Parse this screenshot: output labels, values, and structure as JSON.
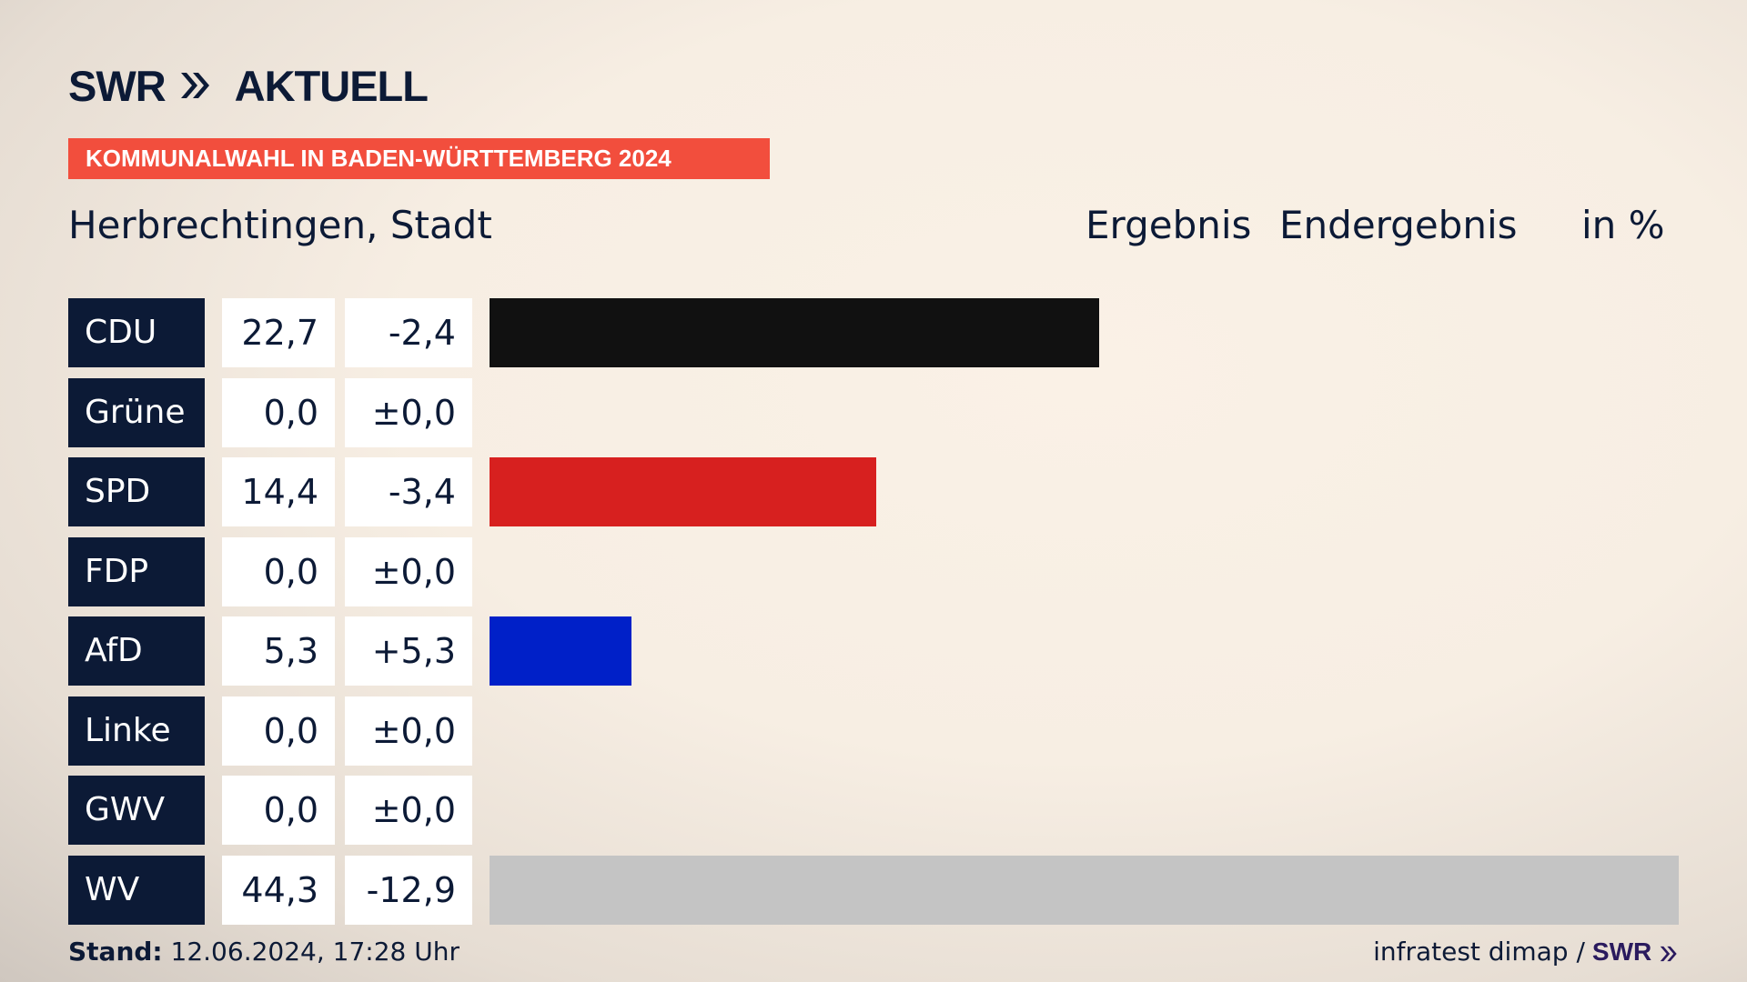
{
  "header": {
    "logo_text": "SWR",
    "logo_suffix": "AKTUELL",
    "banner": "KOMMUNALWAHL IN BADEN-WÜRTTEMBERG 2024",
    "place": "Herbrechtingen, Stadt",
    "col_result": "Ergebnis",
    "col_final": "Endergebnis",
    "col_unit": "in %"
  },
  "chart_data": {
    "type": "bar",
    "title": "Herbrechtingen, Stadt",
    "categories": [
      "CDU",
      "Grüne",
      "SPD",
      "FDP",
      "AfD",
      "Linke",
      "GWV",
      "WV"
    ],
    "series": [
      {
        "values": [
          22.7,
          0.0,
          14.4,
          0.0,
          5.3,
          0.0,
          0.0,
          44.3
        ]
      }
    ],
    "value_labels": [
      "22,7",
      "0,0",
      "14,4",
      "0,0",
      "5,3",
      "0,0",
      "0,0",
      "44,3"
    ],
    "diff_labels": [
      "-2,4",
      "±0,0",
      "-3,4",
      "±0,0",
      "+5,3",
      "±0,0",
      "±0,0",
      "-12,9"
    ],
    "colors": [
      "#111111",
      "#2e8b2e",
      "#d7201f",
      "#f2d500",
      "#0020c8",
      "#b5166b",
      "#6a6a6a",
      "#c4c4c4"
    ],
    "xlim": [
      0,
      44.3
    ]
  },
  "footer": {
    "stand_label": "Stand:",
    "stand_value": "12.06.2024, 17:28 Uhr",
    "source": "infratest dimap /",
    "source_logo": "SWR"
  }
}
